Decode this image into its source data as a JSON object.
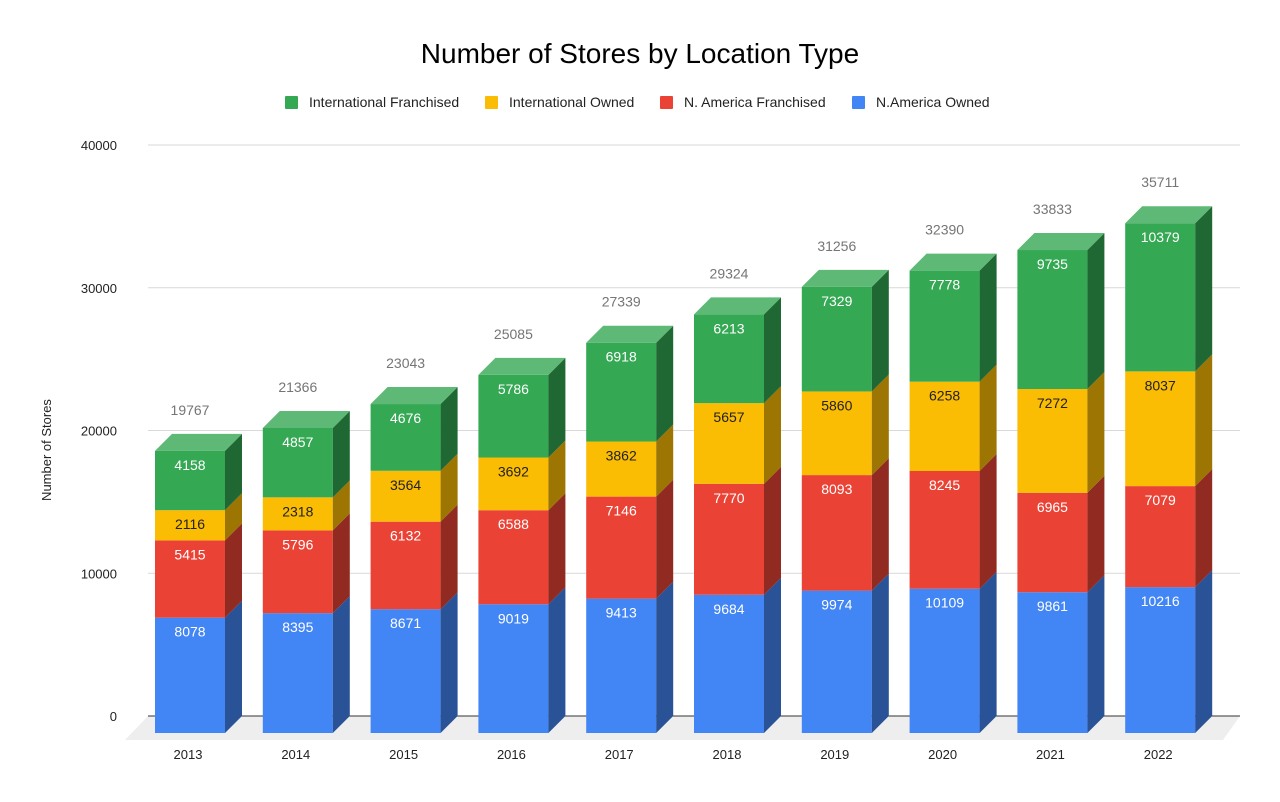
{
  "chart_data": {
    "type": "bar",
    "stacked": true,
    "style": "3d",
    "title": "Number of Stores by Location Type",
    "xlabel": "",
    "ylabel": "Number of Stores",
    "ylim": [
      0,
      40000
    ],
    "yticks": [
      0,
      10000,
      20000,
      30000,
      40000
    ],
    "grid": true,
    "legend_position": "top",
    "categories": [
      "2013",
      "2014",
      "2015",
      "2016",
      "2017",
      "2018",
      "2019",
      "2020",
      "2021",
      "2022"
    ],
    "series": [
      {
        "name": "N.America Owned",
        "color": "#4285F4",
        "values": [
          8078,
          8395,
          8671,
          9019,
          9413,
          9684,
          9974,
          10109,
          9861,
          10216
        ]
      },
      {
        "name": "N. America Franchised",
        "color": "#EA4335",
        "values": [
          5415,
          5796,
          6132,
          6588,
          7146,
          7770,
          8093,
          8245,
          6965,
          7079
        ]
      },
      {
        "name": "International Owned",
        "color": "#FBBC04",
        "values": [
          2116,
          2318,
          3564,
          3692,
          3862,
          5657,
          5860,
          6258,
          7272,
          8037
        ]
      },
      {
        "name": "International Franchised",
        "color": "#34A853",
        "values": [
          4158,
          4857,
          4676,
          5786,
          6918,
          6213,
          7329,
          7778,
          9735,
          10379
        ]
      }
    ],
    "totals": [
      19767,
      21366,
      23043,
      25085,
      27339,
      29324,
      31256,
      32390,
      33833,
      35711
    ],
    "legend_order": [
      "International Franchised",
      "International Owned",
      "N. America Franchised",
      "N.America Owned"
    ]
  }
}
